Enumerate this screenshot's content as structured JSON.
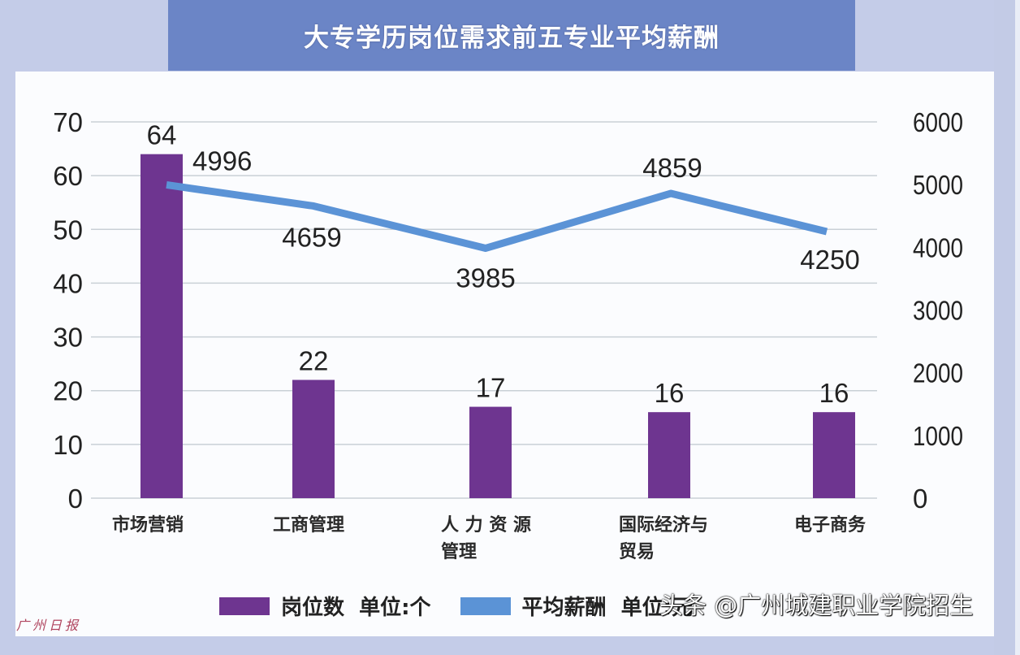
{
  "title": "大专学历岗位需求前五专业平均薪酬",
  "chart_data": {
    "type": "bar+line",
    "title": "大专学历岗位需求前五专业平均薪酬",
    "categories": [
      "市场营销",
      "工商管理",
      "人力资源管理",
      "国际经济与贸易",
      "电子商务"
    ],
    "category_display": [
      [
        "市场营销"
      ],
      [
        "工商管理"
      ],
      [
        "人 力 资 源",
        "管理"
      ],
      [
        "国际经济与",
        "贸易"
      ],
      [
        "电子商务"
      ]
    ],
    "series": [
      {
        "name": "岗位数 单位:个",
        "type": "bar",
        "axis": "left",
        "color": "#6e3590",
        "values": [
          64,
          22,
          17,
          16,
          16
        ]
      },
      {
        "name": "平均薪酬 单位:元",
        "type": "line",
        "axis": "right",
        "color": "#5b93d6",
        "values": [
          4996,
          4659,
          3985,
          4859,
          4250
        ]
      }
    ],
    "left_axis": {
      "min": 0,
      "max": 70,
      "ticks": [
        0,
        10,
        20,
        30,
        40,
        50,
        60,
        70
      ]
    },
    "right_axis": {
      "min": 0,
      "max": 6000,
      "ticks": [
        0,
        1000,
        2000,
        3000,
        4000,
        5000,
        6000
      ]
    },
    "xlabel": "",
    "ylabel": "",
    "grid": true,
    "legend_position": "bottom"
  },
  "legend": {
    "bar_label": "岗位数  单位:个",
    "line_label": "平均薪酬  单位:元"
  },
  "watermark": "头条 @广州城建职业学院招生",
  "signature": "广州日报",
  "colors": {
    "banner": "#6b85c6",
    "background": "#c4cce8",
    "bar": "#6e3590",
    "line": "#5b93d6"
  }
}
